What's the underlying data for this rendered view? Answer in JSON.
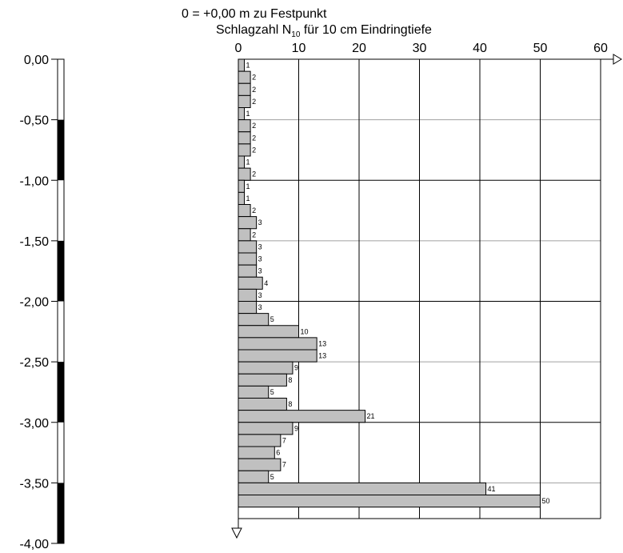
{
  "header": {
    "reference": "0 = +0,00 m zu Festpunkt",
    "title_main": "Schlagzahl N",
    "title_sub": "10",
    "title_rest": " für 10 cm Eindringtiefe"
  },
  "chart_data": {
    "type": "bar",
    "orientation": "horizontal",
    "x_ticks": [
      "0",
      "10",
      "20",
      "30",
      "40",
      "50",
      "60"
    ],
    "xlim": [
      0,
      60
    ],
    "depth_ticks": [
      "0,00",
      "-0,50",
      "-1,00",
      "-1,50",
      "-2,00",
      "-2,50",
      "-3,00",
      "-3,50",
      "-4,00"
    ],
    "depth_range_m": [
      0,
      4
    ],
    "bin_size_m": 0.1,
    "values": [
      1,
      2,
      2,
      2,
      1,
      2,
      2,
      2,
      1,
      2,
      1,
      1,
      2,
      3,
      2,
      3,
      3,
      3,
      4,
      3,
      3,
      5,
      10,
      13,
      13,
      9,
      8,
      5,
      8,
      21,
      9,
      7,
      6,
      7,
      5,
      41,
      50
    ],
    "grid": true,
    "strip_pattern": [
      "white",
      "black",
      "white",
      "black",
      "white",
      "black",
      "white",
      "black"
    ]
  }
}
